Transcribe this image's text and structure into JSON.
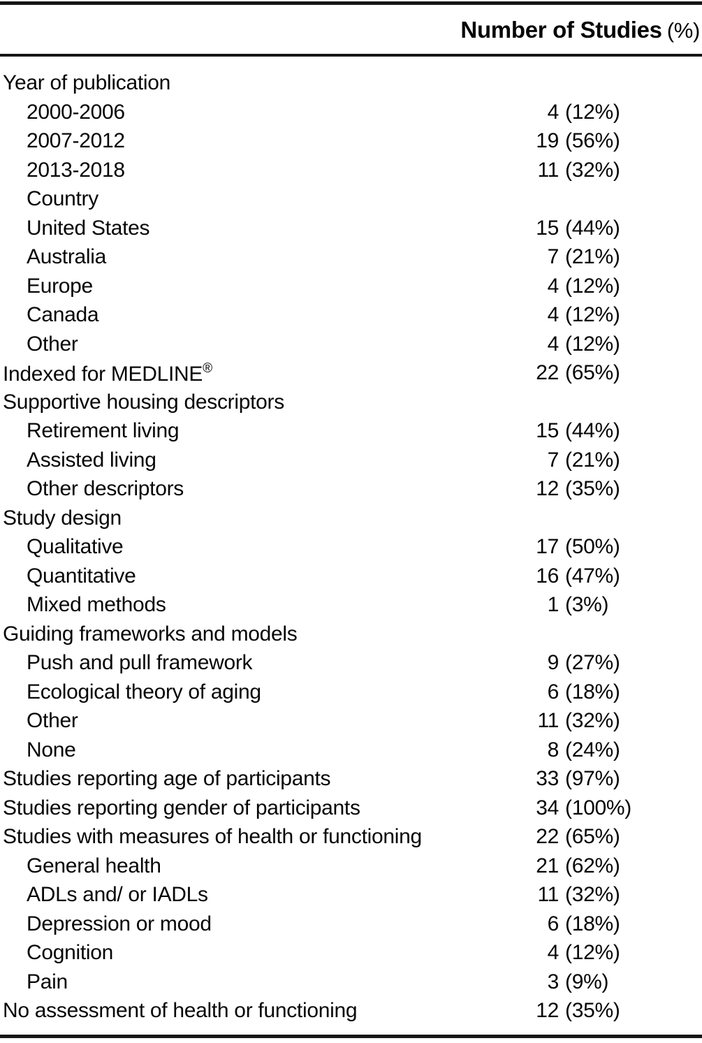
{
  "page": {
    "background": "#ffffff",
    "text_color": "#060606",
    "rule_color": "#161616"
  },
  "header": {
    "title_bold": "Number of Studies",
    "title_paren": "(%)"
  },
  "rows": [
    {
      "label": "Year of publication",
      "indent": 0,
      "count": "",
      "pct": ""
    },
    {
      "label": "2000-2006",
      "indent": 1,
      "count": "4",
      "pct": "(12%)"
    },
    {
      "label": "2007-2012",
      "indent": 1,
      "count": "19",
      "pct": "(56%)"
    },
    {
      "label": "2013-2018",
      "indent": 1,
      "count": "11",
      "pct": "(32%)"
    },
    {
      "label": "Country",
      "indent": 1,
      "count": "",
      "pct": ""
    },
    {
      "label": "United States",
      "indent": 1,
      "count": "15",
      "pct": "(44%)"
    },
    {
      "label": "Australia",
      "indent": 1,
      "count": "7",
      "pct": "(21%)"
    },
    {
      "label": "Europe",
      "indent": 1,
      "count": "4",
      "pct": "(12%)"
    },
    {
      "label": "Canada",
      "indent": 1,
      "count": "4",
      "pct": "(12%)"
    },
    {
      "label": "Other",
      "indent": 1,
      "count": "4",
      "pct": "(12%)"
    },
    {
      "label": "Indexed for MEDLINE",
      "sup": "®",
      "indent": 0,
      "count": "22",
      "pct": "(65%)"
    },
    {
      "label": "Supportive housing descriptors",
      "indent": 0,
      "count": "",
      "pct": ""
    },
    {
      "label": "Retirement living",
      "indent": 1,
      "count": "15",
      "pct": "(44%)"
    },
    {
      "label": "Assisted living",
      "indent": 1,
      "count": "7",
      "pct": "(21%)"
    },
    {
      "label": "Other descriptors",
      "indent": 1,
      "count": "12",
      "pct": "(35%)"
    },
    {
      "label": "Study design",
      "indent": 0,
      "count": "",
      "pct": ""
    },
    {
      "label": "Qualitative",
      "indent": 1,
      "count": "17",
      "pct": "(50%)"
    },
    {
      "label": "Quantitative",
      "indent": 1,
      "count": "16",
      "pct": "(47%)"
    },
    {
      "label": "Mixed methods",
      "indent": 1,
      "count": "1",
      "pct": "(3%)"
    },
    {
      "label": "Guiding frameworks and models",
      "indent": 0,
      "count": "",
      "pct": ""
    },
    {
      "label": "Push and pull framework",
      "indent": 1,
      "count": "9",
      "pct": "(27%)"
    },
    {
      "label": "Ecological theory of aging",
      "indent": 1,
      "count": "6",
      "pct": "(18%)"
    },
    {
      "label": "Other",
      "indent": 1,
      "count": "11",
      "pct": "(32%)"
    },
    {
      "label": "None",
      "indent": 1,
      "count": "8",
      "pct": "(24%)"
    },
    {
      "label": "Studies reporting age of participants",
      "indent": 0,
      "count": "33",
      "pct": "(97%)"
    },
    {
      "label": "Studies reporting gender of participants",
      "indent": 0,
      "count": "34",
      "pct": "(100%)"
    },
    {
      "label": "Studies with measures of health or functioning",
      "indent": 0,
      "count": "22",
      "pct": "(65%)"
    },
    {
      "label": "General health",
      "indent": 1,
      "count": "21",
      "pct": "(62%)"
    },
    {
      "label": "ADLs and/ or IADLs",
      "indent": 1,
      "count": "11",
      "pct": "(32%)"
    },
    {
      "label": "Depression or mood",
      "indent": 1,
      "count": "6",
      "pct": "(18%)"
    },
    {
      "label": "Cognition",
      "indent": 1,
      "count": "4",
      "pct": "(12%)"
    },
    {
      "label": "Pain",
      "indent": 1,
      "count": "3",
      "pct": "(9%)"
    },
    {
      "label": "No assessment of health or functioning",
      "indent": 0,
      "count": "12",
      "pct": "(35%)"
    }
  ]
}
